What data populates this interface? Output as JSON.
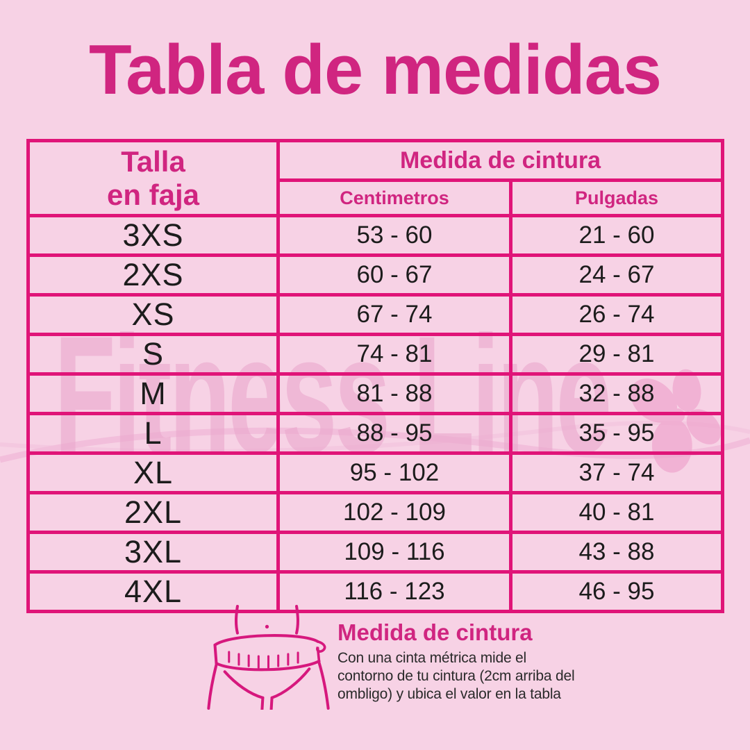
{
  "title": "Tabla de medidas",
  "colors": {
    "background": "#f7d2e5",
    "border": "#e01478",
    "heading": "#d02580",
    "body_text": "#1c1c1c",
    "watermark": "#eba9cd"
  },
  "watermark": {
    "text": "Fitness Line"
  },
  "table": {
    "col1_header": [
      "Talla",
      "en faja"
    ],
    "group_header": "Medida de cintura",
    "sub_headers": [
      "Centimetros",
      "Pulgadas"
    ],
    "rows": [
      {
        "size": "3XS",
        "cm": "53 - 60",
        "in": "21 - 60"
      },
      {
        "size": "2XS",
        "cm": "60 - 67",
        "in": "24 - 67"
      },
      {
        "size": "XS",
        "cm": "67 - 74",
        "in": "26 - 74"
      },
      {
        "size": "S",
        "cm": "74 - 81",
        "in": "29 - 81"
      },
      {
        "size": "M",
        "cm": "81 - 88",
        "in": "32 - 88"
      },
      {
        "size": "L",
        "cm": "88 - 95",
        "in": "35 - 95"
      },
      {
        "size": "XL",
        "cm": "95 - 102",
        "in": "37 - 74"
      },
      {
        "size": "2XL",
        "cm": "102 - 109",
        "in": "40 - 81"
      },
      {
        "size": "3XL",
        "cm": "109 - 116",
        "in": "43 - 88"
      },
      {
        "size": "4XL",
        "cm": "116 - 123",
        "in": "46 - 95"
      }
    ]
  },
  "footer": {
    "heading": "Medida de cintura",
    "description_lines": [
      "Con una cinta métrica mide el",
      "contorno de tu cintura (2cm arriba del",
      "ombligo) y ubica el valor en la tabla"
    ]
  },
  "chart_data": {
    "type": "table",
    "title": "Tabla de medidas",
    "columns": [
      "Talla en faja",
      "Medida de cintura (Centimetros)",
      "Medida de cintura (Pulgadas)"
    ],
    "rows": [
      [
        "3XS",
        "53 - 60",
        "21 - 60"
      ],
      [
        "2XS",
        "60 - 67",
        "24 - 67"
      ],
      [
        "XS",
        "67 - 74",
        "26 - 74"
      ],
      [
        "S",
        "74 - 81",
        "29 - 81"
      ],
      [
        "M",
        "81 - 88",
        "32 - 88"
      ],
      [
        "L",
        "88 - 95",
        "35 - 95"
      ],
      [
        "XL",
        "95 - 102",
        "37 - 74"
      ],
      [
        "2XL",
        "102 - 109",
        "40 - 81"
      ],
      [
        "3XL",
        "109 - 116",
        "43 - 88"
      ],
      [
        "4XL",
        "116 - 123",
        "46 - 95"
      ]
    ]
  }
}
